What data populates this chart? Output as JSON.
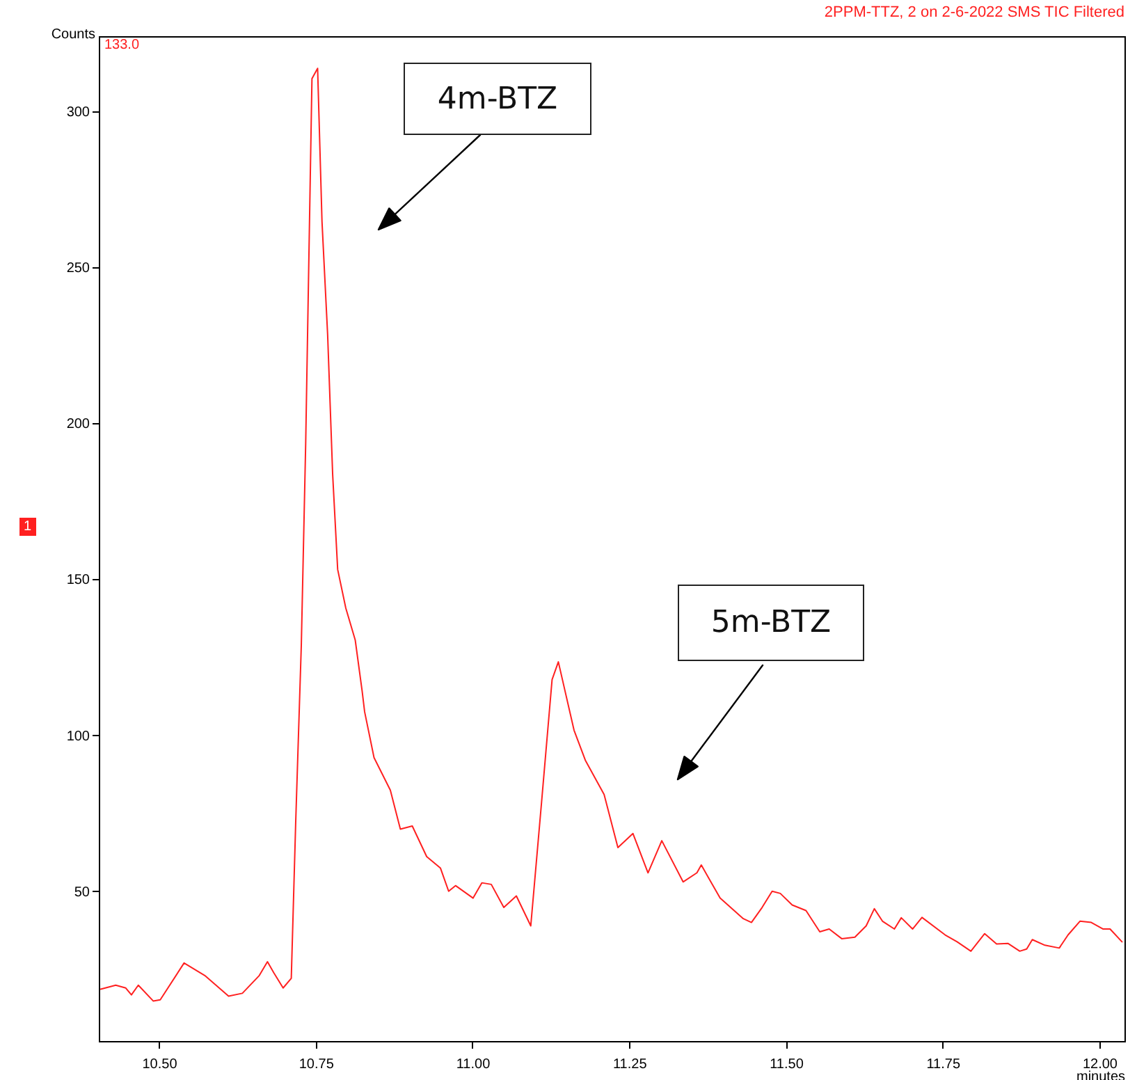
{
  "chart_data": {
    "type": "line",
    "title": "2PPM-TTZ, 2  on  2-6-2022 SMS TIC Filtered",
    "xlabel": "minutes",
    "ylabel": "Counts",
    "annotations": [
      "133.0",
      "1",
      "4m-BTZ",
      "5m-BTZ"
    ],
    "series": [
      {
        "color": "#ff2020",
        "x": [
          10.407,
          10.431,
          10.447,
          10.456,
          10.467,
          10.491,
          10.502,
          10.54,
          10.573,
          10.611,
          10.633,
          10.66,
          10.673,
          10.683,
          10.698,
          10.711,
          10.718,
          10.727,
          10.734,
          10.744,
          10.753,
          10.76,
          10.769,
          10.777,
          10.785,
          10.798,
          10.813,
          10.824,
          10.828,
          10.843,
          10.869,
          10.885,
          10.904,
          10.927,
          10.949,
          10.962,
          10.973,
          11.001,
          11.015,
          11.03,
          11.05,
          11.07,
          11.093,
          11.11,
          11.127,
          11.137,
          11.162,
          11.18,
          11.21,
          11.232,
          11.256,
          11.28,
          11.302,
          11.336,
          11.358,
          11.365,
          11.395,
          11.432,
          11.445,
          11.462,
          11.478,
          11.491,
          11.51,
          11.532,
          11.554,
          11.569,
          11.589,
          11.61,
          11.628,
          11.641,
          11.654,
          11.673,
          11.684,
          11.702,
          11.717,
          11.754,
          11.773,
          11.795,
          11.817,
          11.836,
          11.854,
          11.873,
          11.884,
          11.893,
          11.913,
          11.936,
          11.95,
          11.969,
          11.987,
          12.006,
          12.017,
          12.036
        ],
        "values": [
          18.6,
          19.9,
          19,
          16.8,
          19.9,
          14.8,
          15.2,
          27,
          23,
          16.4,
          17.3,
          23,
          27.4,
          23.9,
          19,
          22.1,
          71.7,
          128.8,
          193.6,
          310.4,
          313.7,
          264.6,
          228.3,
          183.6,
          153.1,
          140.7,
          130.5,
          114.2,
          107.5,
          92.8,
          82.4,
          69.9,
          70.9,
          61.1,
          57.4,
          50,
          51.8,
          47.8,
          52.7,
          52.2,
          44.8,
          48.5,
          38.9,
          78,
          117.8,
          123.5,
          101.6,
          92,
          81,
          64,
          68.5,
          55.9,
          66.2,
          53,
          55.9,
          58.4,
          47.8,
          41.2,
          40,
          44.8,
          50,
          49.3,
          45.6,
          43.8,
          37,
          37.9,
          34.8,
          35.3,
          38.9,
          44.4,
          40.4,
          37.9,
          41.5,
          37.9,
          41.6,
          36,
          33.8,
          30.8,
          36.4,
          33.1,
          33.3,
          30.8,
          31.5,
          34.5,
          32.7,
          31.8,
          36,
          40.4,
          40,
          37.9,
          37.9,
          33.8
        ]
      }
    ],
    "xlim": [
      10.404,
      12.04
    ],
    "ylim": [
      2,
      324
    ],
    "xticks": [
      {
        "value": 10.5,
        "label": "10.50"
      },
      10.75,
      {
        "value": 11,
        "label": "11.00"
      },
      11.25,
      {
        "value": 11.5,
        "label": "11.50"
      },
      11.75,
      {
        "value": 12,
        "label": "12.00"
      }
    ],
    "yticks": [
      50,
      100,
      150,
      200,
      250,
      300
    ],
    "grid": false
  }
}
